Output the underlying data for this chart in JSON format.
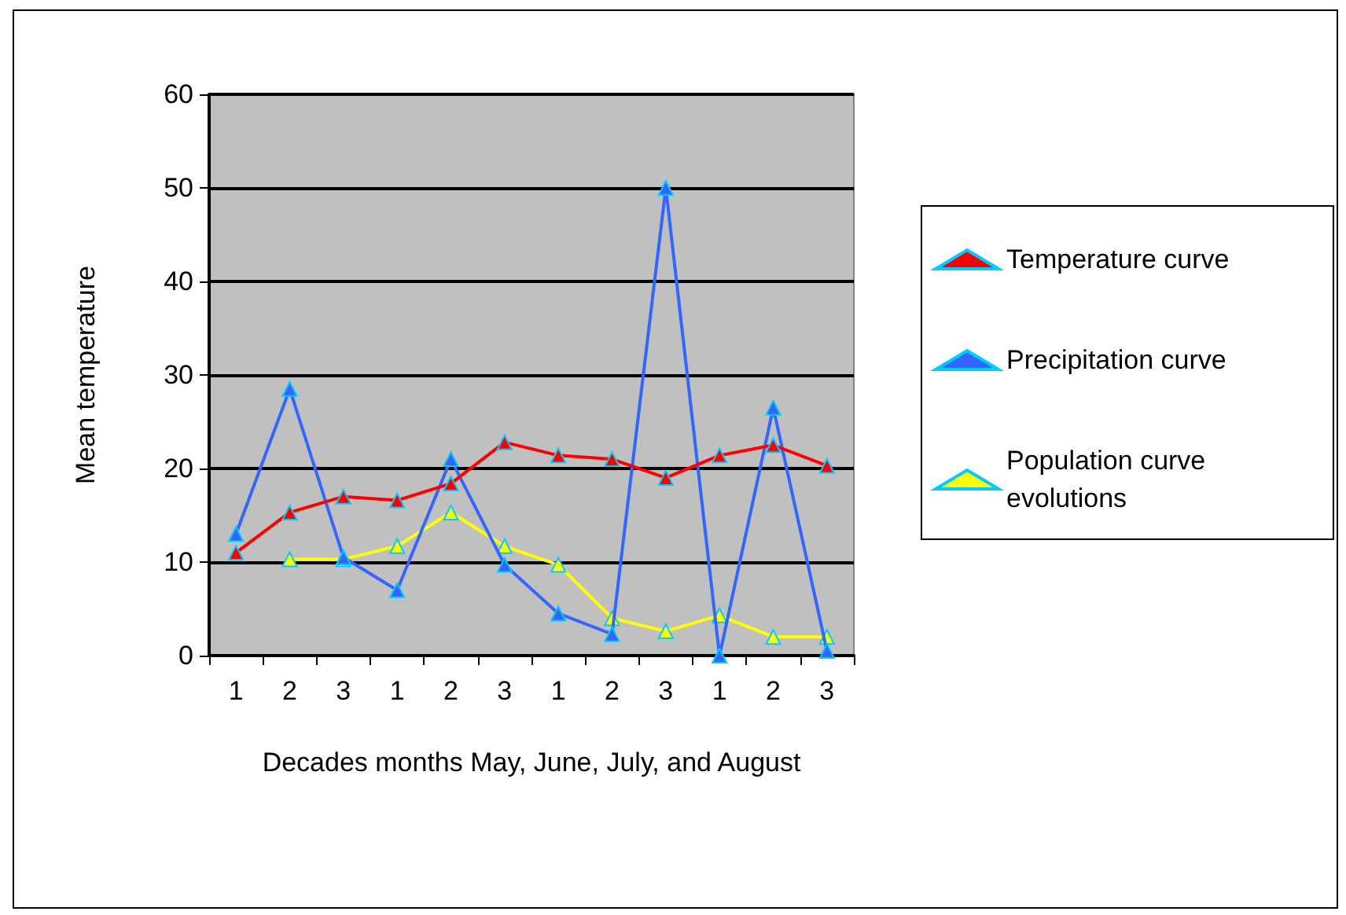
{
  "chart_data": {
    "type": "line",
    "xlabel": "Decades months May, June, July, and August",
    "ylabel": "Mean temperature",
    "categories": [
      "1",
      "2",
      "3",
      "1",
      "2",
      "3",
      "1",
      "2",
      "3",
      "1",
      "2",
      "3"
    ],
    "series": [
      {
        "name": "Temperature curve",
        "color": "#ff0000",
        "values": [
          11,
          15.3,
          17,
          16.6,
          18.4,
          22.8,
          21.4,
          21,
          19,
          21.4,
          22.5,
          20.3
        ]
      },
      {
        "name": "Precipitation curve",
        "color": "#3366ff",
        "values": [
          13,
          28.5,
          10.5,
          7,
          21,
          9.7,
          4.5,
          2.3,
          50,
          0,
          26.5,
          0.5
        ]
      },
      {
        "name": "Population curve evolutions",
        "color": "#ffff00",
        "values": [
          null,
          10.3,
          10.3,
          11.7,
          15.3,
          11.7,
          9.7,
          4,
          2.6,
          4.3,
          2,
          2
        ]
      }
    ],
    "ylim": [
      0,
      60
    ],
    "yticks": [
      0,
      10,
      20,
      30,
      40,
      50,
      60
    ],
    "grid": "y",
    "legend": "right",
    "marker": "triangle",
    "line_style": "solid"
  }
}
